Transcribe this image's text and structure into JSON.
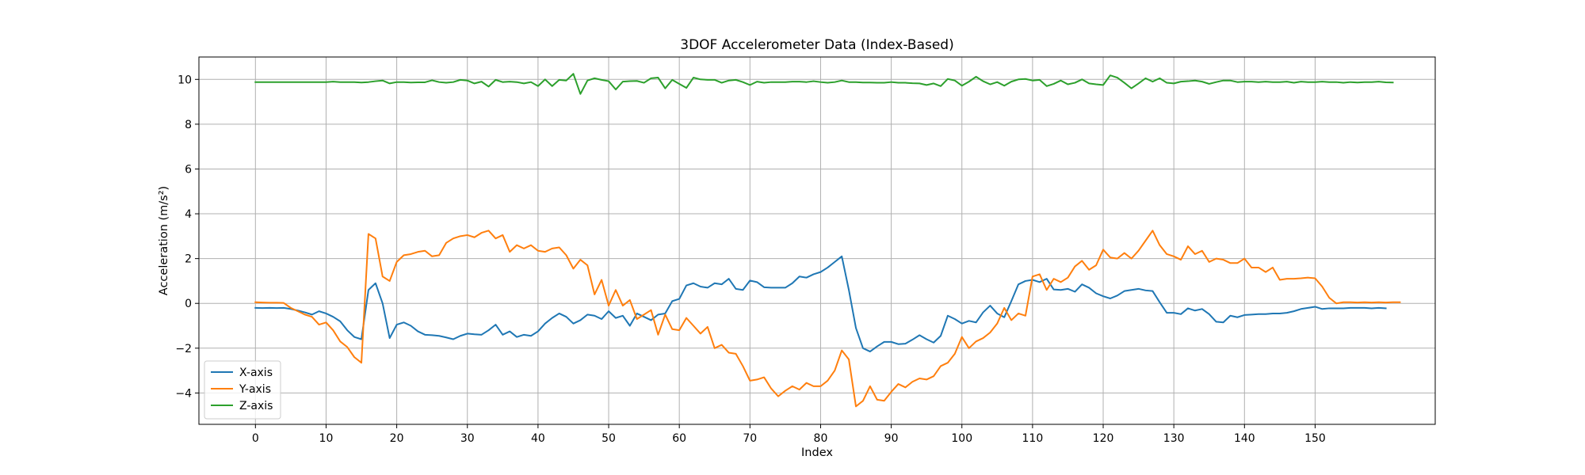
{
  "chart_data": {
    "type": "line",
    "title": "3DOF Accelerometer Data (Index-Based)",
    "xlabel": "Index",
    "ylabel": "Acceleration (m/s²)",
    "xlim": [
      -8.0,
      167.0
    ],
    "ylim": [
      -5.4,
      11.0
    ],
    "xticks": [
      0,
      10,
      20,
      30,
      40,
      50,
      60,
      70,
      80,
      90,
      100,
      110,
      120,
      130,
      140,
      150
    ],
    "yticks": [
      -4,
      -2,
      0,
      2,
      4,
      6,
      8,
      10
    ],
    "grid": true,
    "legend_position": "lower left",
    "series": [
      {
        "name": "X-axis",
        "color": "#1f77b4",
        "values": [
          -0.2,
          -0.21,
          -0.2,
          -0.21,
          -0.2,
          -0.25,
          -0.32,
          -0.4,
          -0.5,
          -0.35,
          -0.45,
          -0.6,
          -0.8,
          -1.2,
          -1.5,
          -1.6,
          0.6,
          0.9,
          0.0,
          -1.55,
          -0.95,
          -0.85,
          -1.0,
          -1.25,
          -1.4,
          -1.42,
          -1.45,
          -1.52,
          -1.6,
          -1.45,
          -1.35,
          -1.38,
          -1.4,
          -1.2,
          -0.95,
          -1.4,
          -1.25,
          -1.5,
          -1.4,
          -1.45,
          -1.25,
          -0.9,
          -0.65,
          -0.45,
          -0.6,
          -0.9,
          -0.75,
          -0.5,
          -0.55,
          -0.7,
          -0.35,
          -0.65,
          -0.55,
          -1.0,
          -0.45,
          -0.6,
          -0.75,
          -0.5,
          -0.45,
          0.1,
          0.2,
          0.8,
          0.9,
          0.75,
          0.7,
          0.9,
          0.85,
          1.1,
          0.65,
          0.6,
          1.02,
          0.95,
          0.72,
          0.7,
          0.7,
          0.7,
          0.9,
          1.2,
          1.15,
          1.3,
          1.4,
          1.6,
          1.85,
          2.1,
          0.6,
          -1.1,
          -2.0,
          -2.15,
          -1.92,
          -1.72,
          -1.72,
          -1.82,
          -1.8,
          -1.62,
          -1.42,
          -1.6,
          -1.75,
          -1.45,
          -0.55,
          -0.7,
          -0.9,
          -0.78,
          -0.85,
          -0.4,
          -0.1,
          -0.45,
          -0.62,
          0.1,
          0.85,
          1.0,
          1.05,
          0.95,
          1.1,
          0.62,
          0.6,
          0.65,
          0.52,
          0.85,
          0.7,
          0.45,
          0.32,
          0.22,
          0.35,
          0.55,
          0.6,
          0.65,
          0.58,
          0.55,
          0.05,
          -0.42,
          -0.42,
          -0.48,
          -0.22,
          -0.32,
          -0.25,
          -0.48,
          -0.82,
          -0.85,
          -0.55,
          -0.62,
          -0.52,
          -0.5,
          -0.48,
          -0.48,
          -0.45,
          -0.45,
          -0.42,
          -0.35,
          -0.25,
          -0.2,
          -0.15,
          -0.25,
          -0.22,
          -0.22,
          -0.22,
          -0.2,
          -0.2,
          -0.2,
          -0.22,
          -0.2,
          -0.22
        ]
      },
      {
        "name": "Y-axis",
        "color": "#ff7f0e",
        "values": [
          0.05,
          0.04,
          0.03,
          0.03,
          0.02,
          -0.2,
          -0.35,
          -0.5,
          -0.6,
          -0.95,
          -0.85,
          -1.2,
          -1.7,
          -1.95,
          -2.4,
          -2.65,
          3.1,
          2.9,
          1.2,
          1.0,
          1.85,
          2.15,
          2.2,
          2.3,
          2.35,
          2.1,
          2.15,
          2.7,
          2.9,
          3.0,
          3.05,
          2.95,
          3.15,
          3.25,
          2.9,
          3.05,
          2.3,
          2.6,
          2.45,
          2.6,
          2.35,
          2.3,
          2.45,
          2.5,
          2.15,
          1.55,
          1.95,
          1.7,
          0.4,
          1.05,
          -0.1,
          0.6,
          -0.1,
          0.15,
          -0.7,
          -0.5,
          -0.3,
          -1.4,
          -0.5,
          -1.15,
          -1.2,
          -0.65,
          -1.0,
          -1.35,
          -1.05,
          -2.0,
          -1.85,
          -2.2,
          -2.25,
          -2.8,
          -3.45,
          -3.4,
          -3.3,
          -3.8,
          -4.15,
          -3.9,
          -3.7,
          -3.85,
          -3.55,
          -3.7,
          -3.7,
          -3.45,
          -3.0,
          -2.1,
          -2.5,
          -4.6,
          -4.35,
          -3.7,
          -4.3,
          -4.35,
          -3.95,
          -3.6,
          -3.75,
          -3.5,
          -3.35,
          -3.4,
          -3.25,
          -2.8,
          -2.65,
          -2.25,
          -1.5,
          -2.0,
          -1.7,
          -1.55,
          -1.3,
          -0.9,
          -0.2,
          -0.75,
          -0.45,
          -0.55,
          1.2,
          1.3,
          0.6,
          1.1,
          0.95,
          1.15,
          1.65,
          1.9,
          1.5,
          1.7,
          2.4,
          2.05,
          2.0,
          2.25,
          2.0,
          2.35,
          2.8,
          3.25,
          2.6,
          2.2,
          2.1,
          1.95,
          2.55,
          2.2,
          2.35,
          1.85,
          2.0,
          1.95,
          1.8,
          1.8,
          2.0,
          1.6,
          1.6,
          1.4,
          1.6,
          1.05,
          1.1,
          1.1,
          1.12,
          1.15,
          1.12,
          0.75,
          0.25,
          0.0,
          0.05,
          0.05,
          0.04,
          0.05,
          0.04,
          0.05,
          0.04,
          0.05,
          0.05
        ]
      },
      {
        "name": "Z-axis",
        "color": "#2ca02c",
        "values": [
          9.88,
          9.88,
          9.88,
          9.88,
          9.88,
          9.88,
          9.88,
          9.88,
          9.88,
          9.88,
          9.88,
          9.9,
          9.88,
          9.88,
          9.88,
          9.86,
          9.88,
          9.92,
          9.95,
          9.82,
          9.88,
          9.88,
          9.86,
          9.87,
          9.87,
          9.96,
          9.88,
          9.85,
          9.88,
          9.98,
          9.95,
          9.82,
          9.9,
          9.68,
          9.98,
          9.88,
          9.9,
          9.88,
          9.82,
          9.88,
          9.7,
          10.0,
          9.7,
          9.98,
          9.95,
          10.25,
          9.35,
          9.95,
          10.05,
          9.98,
          9.92,
          9.55,
          9.9,
          9.92,
          9.93,
          9.85,
          10.05,
          10.08,
          9.6,
          9.98,
          9.8,
          9.62,
          10.08,
          10.0,
          9.98,
          9.98,
          9.85,
          9.95,
          9.98,
          9.88,
          9.75,
          9.9,
          9.85,
          9.88,
          9.88,
          9.88,
          9.9,
          9.9,
          9.88,
          9.92,
          9.88,
          9.85,
          9.88,
          9.95,
          9.88,
          9.88,
          9.86,
          9.86,
          9.85,
          9.85,
          9.88,
          9.85,
          9.85,
          9.83,
          9.82,
          9.75,
          9.82,
          9.7,
          10.02,
          9.95,
          9.72,
          9.9,
          10.12,
          9.92,
          9.78,
          9.88,
          9.72,
          9.9,
          10.0,
          10.02,
          9.95,
          9.98,
          9.7,
          9.8,
          9.95,
          9.78,
          9.85,
          10.0,
          9.82,
          9.78,
          9.75,
          10.18,
          10.08,
          9.85,
          9.6,
          9.82,
          10.05,
          9.9,
          10.05,
          9.85,
          9.82,
          9.9,
          9.92,
          9.95,
          9.9,
          9.8,
          9.88,
          9.95,
          9.95,
          9.88,
          9.9,
          9.9,
          9.88,
          9.9,
          9.88,
          9.88,
          9.9,
          9.85,
          9.9,
          9.88,
          9.88,
          9.9,
          9.88,
          9.88,
          9.85,
          9.88,
          9.86,
          9.88,
          9.88,
          9.9,
          9.87,
          9.86
        ]
      }
    ]
  }
}
